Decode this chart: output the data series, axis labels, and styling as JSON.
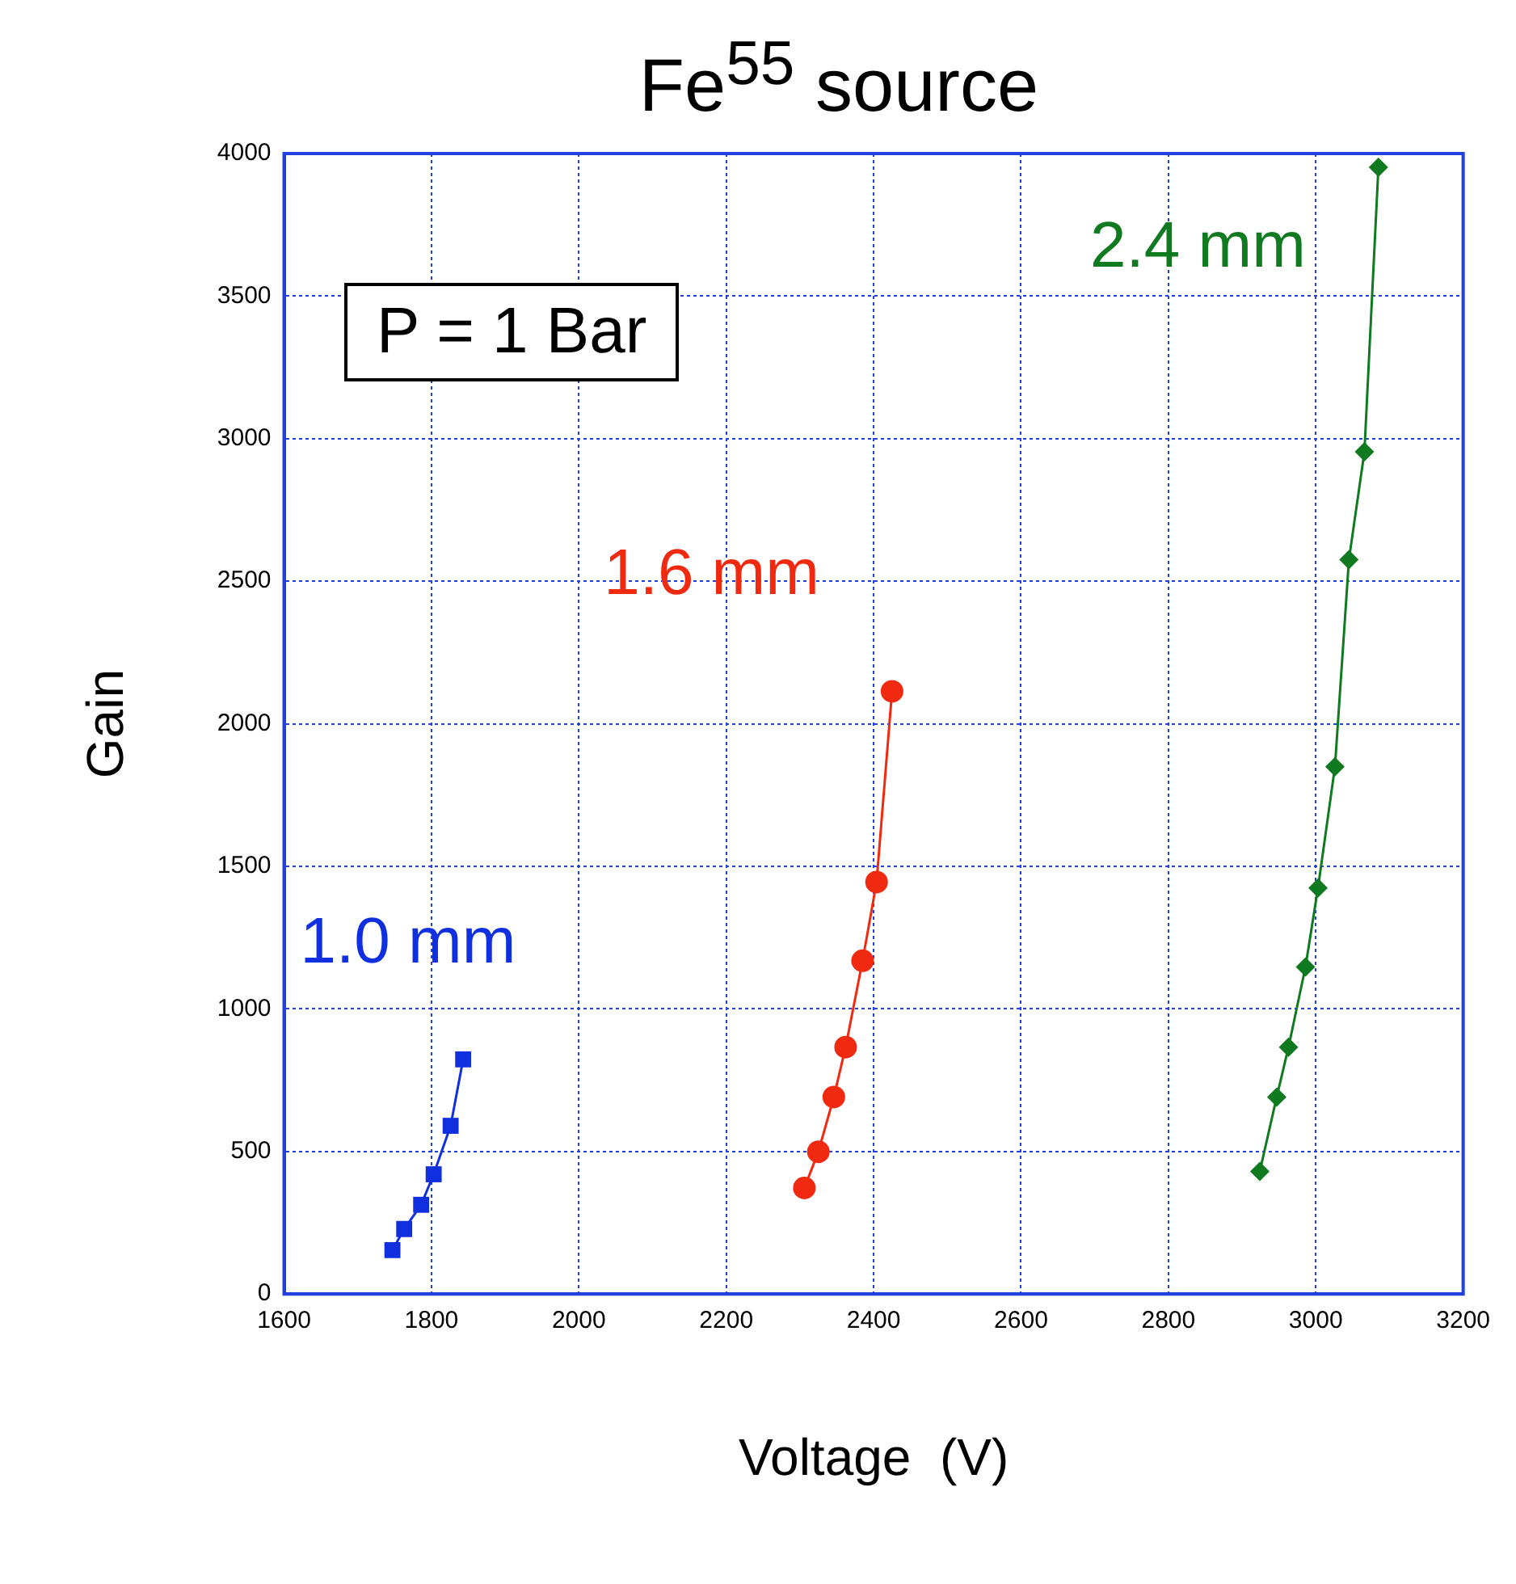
{
  "chart_data": {
    "type": "line",
    "title": "Fe$^{55}$ source",
    "xlabel": "Voltage  (V)",
    "ylabel": "Gain",
    "xlim": [
      1600,
      3200
    ],
    "xticks": [
      1600,
      1800,
      2000,
      2200,
      2400,
      2600,
      2800,
      3000,
      3200
    ],
    "ylim": [
      0,
      4000
    ],
    "yticks": [
      0,
      500,
      1000,
      1500,
      2000,
      2500,
      3000,
      3500,
      4000
    ],
    "grid": true,
    "legend": false,
    "annotations": [
      "P = 1 Bar"
    ],
    "series": [
      {
        "name": "1.0 mm",
        "color": "#1030e0",
        "marker": "square",
        "x": [
          1747,
          1763,
          1786,
          1803,
          1826,
          1843
        ],
        "values": [
          154,
          228,
          313,
          420,
          590,
          823
        ]
      },
      {
        "name": "1.6 mm",
        "color": "#f02a10",
        "marker": "circle",
        "x": [
          2306,
          2325,
          2346,
          2362,
          2385,
          2404,
          2425
        ],
        "values": [
          372,
          499,
          691,
          866,
          1169,
          1445,
          2114
        ]
      },
      {
        "name": "2.4 mm",
        "color": "#107a20",
        "marker": "diamond",
        "x": [
          2924,
          2947,
          2963,
          2986,
          3003,
          3026,
          3045,
          3066,
          3085
        ],
        "values": [
          430,
          691,
          866,
          1147,
          1424,
          1849,
          2576,
          2954,
          3952
        ]
      }
    ]
  }
}
